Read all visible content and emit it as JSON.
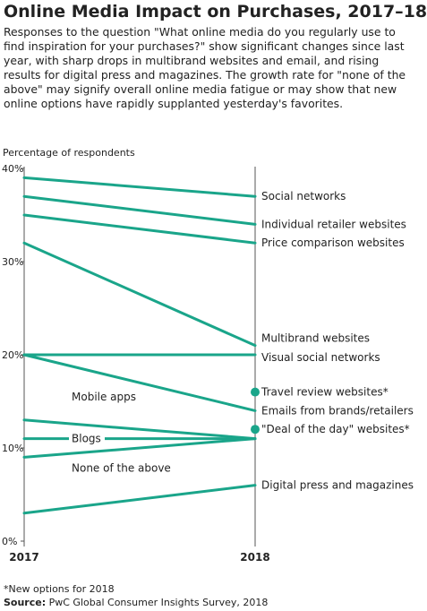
{
  "title": "Online Media Impact on Purchases, 2017–18",
  "subtitle": "Responses to the question \"What online media do you regularly use to find inspiration for your purchases?\" show significant changes since last year, with sharp drops in multibrand websites and email, and rising results for digital press and magazines. The growth rate for \"none of the above\" may signify overall online media fatigue or may show that new online options have rapidly supplanted yesterday's favorites.",
  "footnote": "*New options for 2018",
  "source": {
    "label": "Source:",
    "text": "PwC Global Consumer Insights Survey, 2018"
  },
  "colors": {
    "series": "#1aa58a",
    "axis": "#555555",
    "text": "#222222"
  },
  "chart_data": {
    "type": "line",
    "title": "",
    "xlabel": "",
    "ylabel": "Percentage of respondents",
    "x": [
      "2017",
      "2018"
    ],
    "ylim": [
      0,
      40
    ],
    "yticks": [
      "0%",
      "10%",
      "20%",
      "30%",
      "40%"
    ],
    "grid": false,
    "series": [
      {
        "name": "Social networks",
        "values": [
          39,
          37
        ],
        "label_side": "right"
      },
      {
        "name": "Individual retailer websites",
        "values": [
          37,
          34
        ],
        "label_side": "right"
      },
      {
        "name": "Price comparison websites",
        "values": [
          35,
          32
        ],
        "label_side": "right"
      },
      {
        "name": "Multibrand websites",
        "values": [
          32,
          21
        ],
        "label_side": "right"
      },
      {
        "name": "Visual social networks",
        "values": [
          20,
          20
        ],
        "label_side": "right"
      },
      {
        "name": "Emails from brands/retailers",
        "values": [
          20,
          14
        ],
        "label_side": "right"
      },
      {
        "name": "Digital press and magazines",
        "values": [
          3,
          6
        ],
        "label_side": "right"
      },
      {
        "name": "Mobile apps",
        "values": [
          13,
          11
        ],
        "label_side": "inline"
      },
      {
        "name": "Blogs",
        "values": [
          11,
          11
        ],
        "label_side": "inline"
      },
      {
        "name": "None of the above",
        "values": [
          9,
          11
        ],
        "label_side": "inline"
      }
    ],
    "new_points": [
      {
        "name": "Travel review websites*",
        "value": 16
      },
      {
        "name": "\"Deal of the day\" websites*",
        "value": 12
      }
    ]
  }
}
